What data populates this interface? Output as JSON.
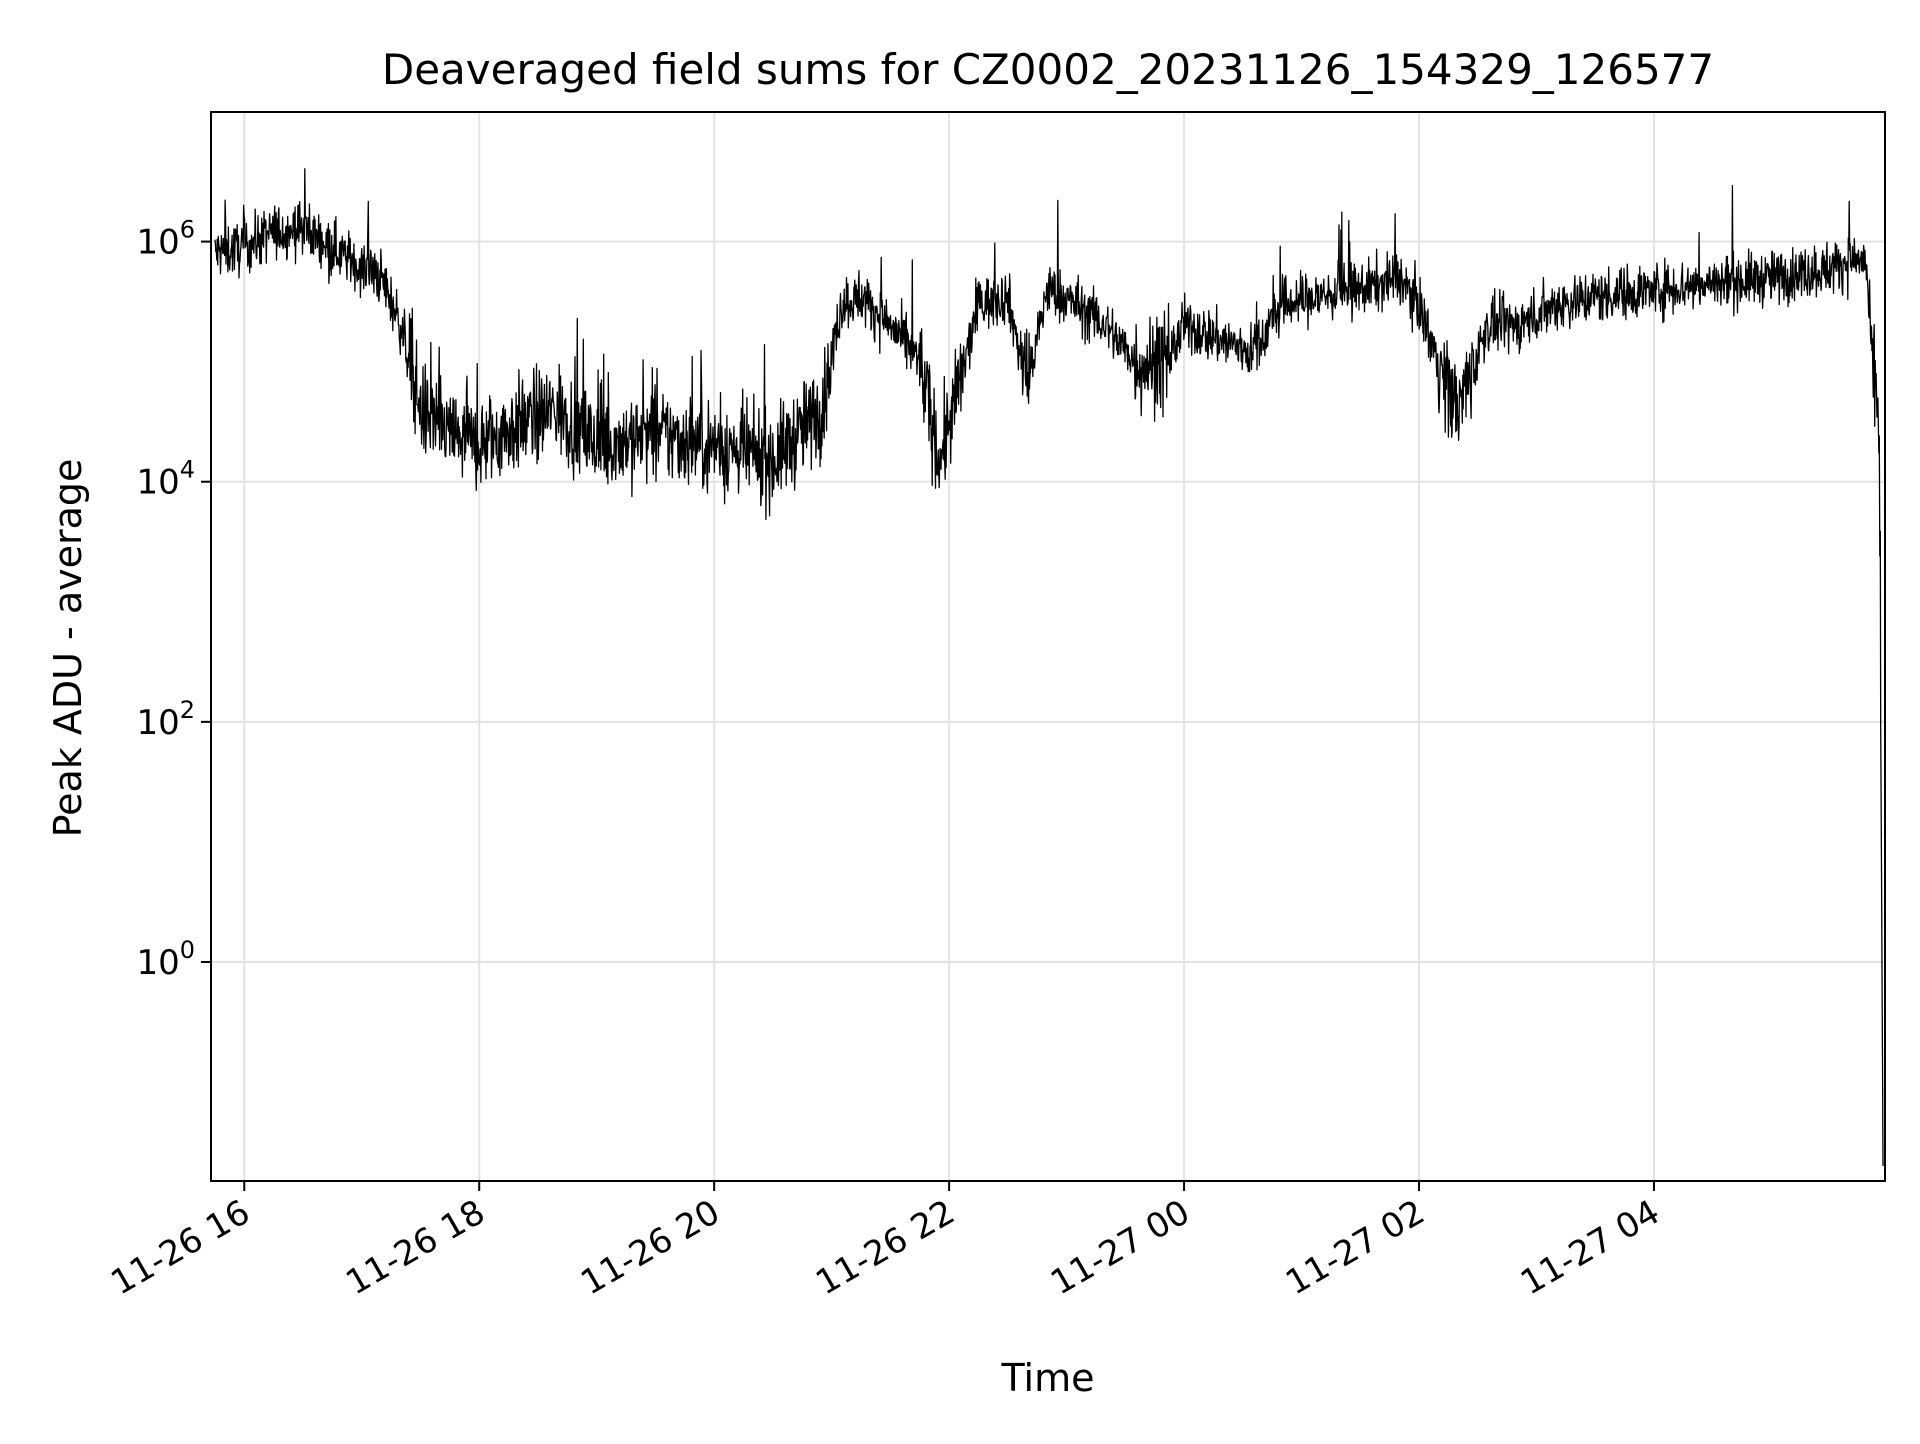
{
  "chart_data": {
    "type": "line",
    "title": "Deaveraged field sums for CZ0002_20231126_154329_126577",
    "xlabel": "Time",
    "ylabel": "Peak ADU - average",
    "yscale": "log",
    "x_ticks": [
      "11-26 16",
      "11-26 18",
      "11-26 20",
      "11-26 22",
      "11-27 00",
      "11-27 02",
      "11-27 04"
    ],
    "x_tick_rotation": "30deg",
    "y_ticks": [
      {
        "base": "10",
        "exp": "0",
        "value": 1
      },
      {
        "base": "10",
        "exp": "2",
        "value": 100
      },
      {
        "base": "10",
        "exp": "4",
        "value": 10000
      },
      {
        "base": "10",
        "exp": "6",
        "value": 1000000
      }
    ],
    "xlim": [
      "2023-11-26 15:43",
      "2023-11-27 05:58"
    ],
    "ylim": [
      0.015,
      12000000.0
    ],
    "grid": true,
    "line_color": "#000000",
    "series": [
      {
        "x": [
          "2023-11-26 15:45",
          "2023-11-26 16:00",
          "2023-11-26 16:15",
          "2023-11-26 16:30",
          "2023-11-26 16:45",
          "2023-11-26 17:00",
          "2023-11-26 17:10",
          "2023-11-26 17:20",
          "2023-11-26 17:30",
          "2023-11-26 17:45",
          "2023-11-26 18:00",
          "2023-11-26 18:20",
          "2023-11-26 18:40",
          "2023-11-26 19:00",
          "2023-11-26 19:30",
          "2023-11-26 20:00",
          "2023-11-26 20:30",
          "2023-11-26 20:55",
          "2023-11-26 21:05",
          "2023-11-26 21:15",
          "2023-11-26 21:30",
          "2023-11-26 21:45",
          "2023-11-26 21:55",
          "2023-11-26 22:05",
          "2023-11-26 22:15",
          "2023-11-26 22:30",
          "2023-11-26 22:40",
          "2023-11-26 22:50",
          "2023-11-26 23:05",
          "2023-11-26 23:20",
          "2023-11-26 23:35",
          "2023-11-26 23:50",
          "2023-11-27 00:00",
          "2023-11-27 00:20",
          "2023-11-27 00:35",
          "2023-11-27 00:50",
          "2023-11-27 01:10",
          "2023-11-27 01:30",
          "2023-11-27 01:50",
          "2023-11-27 02:00",
          "2023-11-27 02:12",
          "2023-11-27 02:20",
          "2023-11-27 02:35",
          "2023-11-27 02:50",
          "2023-11-27 03:10",
          "2023-11-27 03:30",
          "2023-11-27 04:00",
          "2023-11-27 04:30",
          "2023-11-27 05:00",
          "2023-11-27 05:30",
          "2023-11-27 05:40",
          "2023-11-27 05:48",
          "2023-11-27 05:52",
          "2023-11-27 05:55",
          "2023-11-27 05:57"
        ],
        "y": [
          800000,
          900000,
          1200000,
          1300000,
          900000,
          600000,
          500000,
          200000,
          40000,
          25000,
          20000,
          30000,
          40000,
          20000,
          25000,
          20000,
          15000,
          40000,
          300000,
          350000,
          200000,
          100000,
          15000,
          60000,
          300000,
          350000,
          60000,
          400000,
          300000,
          200000,
          100000,
          90000,
          200000,
          150000,
          120000,
          300000,
          350000,
          400000,
          500000,
          300000,
          80000,
          40000,
          200000,
          200000,
          300000,
          350000,
          400000,
          450000,
          500000,
          600000,
          700000,
          700000,
          80000,
          30000,
          0.02
        ]
      }
    ]
  }
}
